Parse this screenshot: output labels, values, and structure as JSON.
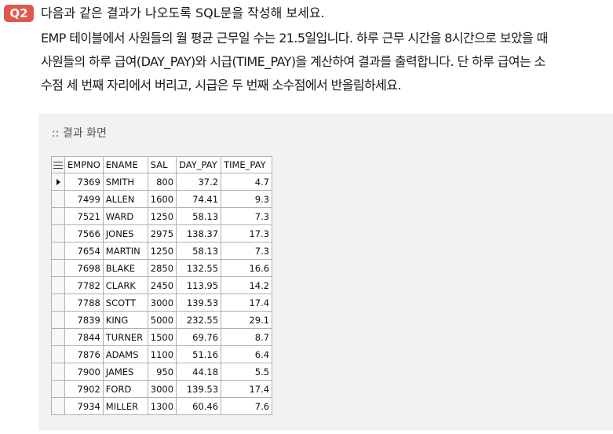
{
  "question": {
    "badge": "Q2",
    "title": "다음과 같은 결과가 나오도록 SQL문을 작성해 보세요.",
    "body_lines": [
      "EMP 테이블에서 사원들의 월 평균 근무일 수는 21.5일입니다. 하루 근무 시간을 8시간으로 보았을 때",
      "사원들의 하루 급여(DAY_PAY)와 시급(TIME_PAY)을 계산하여 결과를 출력합니다. 단 하루 급여는 소",
      "수점 세 번째 자리에서 버리고, 시급은 두 번째 소수점에서 반올림하세요."
    ]
  },
  "result": {
    "label": ":: 결과 화면",
    "header_icon": "list-icon",
    "selected_row_icon": "row-pointer-icon",
    "columns": [
      "EMPNO",
      "ENAME",
      "SAL",
      "DAY_PAY",
      "TIME_PAY"
    ],
    "rows": [
      [
        "7369",
        "SMITH",
        "800",
        "37.2",
        "4.7"
      ],
      [
        "7499",
        "ALLEN",
        "1600",
        "74.41",
        "9.3"
      ],
      [
        "7521",
        "WARD",
        "1250",
        "58.13",
        "7.3"
      ],
      [
        "7566",
        "JONES",
        "2975",
        "138.37",
        "17.3"
      ],
      [
        "7654",
        "MARTIN",
        "1250",
        "58.13",
        "7.3"
      ],
      [
        "7698",
        "BLAKE",
        "2850",
        "132.55",
        "16.6"
      ],
      [
        "7782",
        "CLARK",
        "2450",
        "113.95",
        "14.2"
      ],
      [
        "7788",
        "SCOTT",
        "3000",
        "139.53",
        "17.4"
      ],
      [
        "7839",
        "KING",
        "5000",
        "232.55",
        "29.1"
      ],
      [
        "7844",
        "TURNER",
        "1500",
        "69.76",
        "8.7"
      ],
      [
        "7876",
        "ADAMS",
        "1100",
        "51.16",
        "6.4"
      ],
      [
        "7900",
        "JAMES",
        "950",
        "44.18",
        "5.5"
      ],
      [
        "7902",
        "FORD",
        "3000",
        "139.53",
        "17.4"
      ],
      [
        "7934",
        "MILLER",
        "1300",
        "60.46",
        "7.6"
      ]
    ]
  },
  "colors": {
    "badge": "#e2574c",
    "panel": "#f2f2f2",
    "grid_border": "#b0b0b0"
  }
}
